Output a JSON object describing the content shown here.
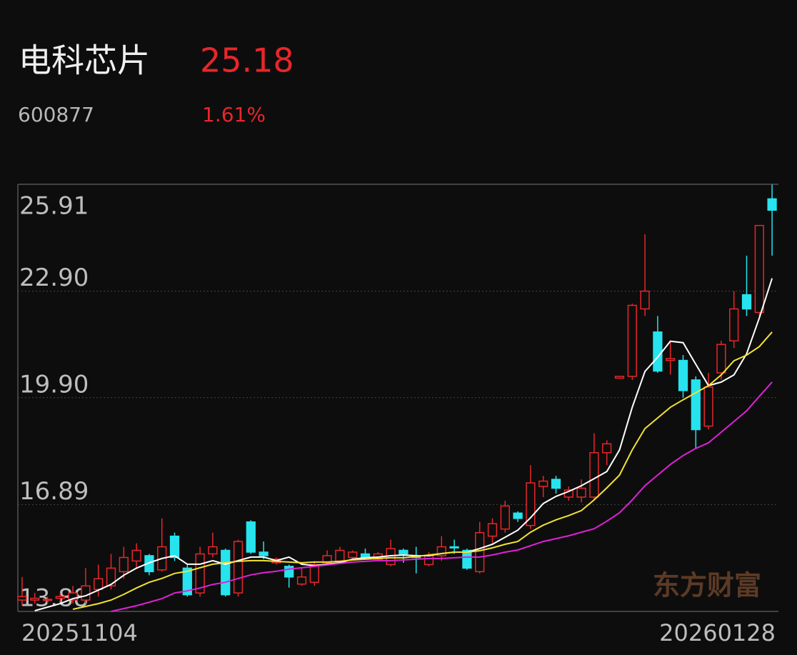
{
  "header": {
    "name": "电科芯片",
    "price": "25.18",
    "code": "600877",
    "change": "1.61%"
  },
  "watermark": "东方财富",
  "chart_data": {
    "type": "candlestick",
    "categories": [
      "20251104",
      null,
      null,
      null,
      null,
      null,
      null,
      null,
      null,
      null,
      null,
      null,
      null,
      null,
      null,
      null,
      null,
      null,
      null,
      null,
      null,
      null,
      null,
      null,
      null,
      null,
      null,
      null,
      null,
      null,
      null,
      null,
      null,
      null,
      null,
      null,
      null,
      null,
      null,
      null,
      null,
      null,
      null,
      null,
      null,
      null,
      null,
      null,
      null,
      null,
      null,
      null,
      null,
      null,
      null,
      null,
      null,
      null,
      null,
      "20260128"
    ],
    "open": [
      14.2,
      14.2,
      14.2,
      14.25,
      14.2,
      14.2,
      14.5,
      14.6,
      15.0,
      15.3,
      15.45,
      15.05,
      16.0,
      15.1,
      14.4,
      15.5,
      15.6,
      14.4,
      16.4,
      15.55,
      15.25,
      15.15,
      14.65,
      14.7,
      15.25,
      15.3,
      15.4,
      15.5,
      15.35,
      15.2,
      15.6,
      15.45,
      15.2,
      15.45,
      15.7,
      15.6,
      15.0,
      16.0,
      16.2,
      16.65,
      16.3,
      17.4,
      17.6,
      17.1,
      17.1,
      17.1,
      18.35,
      20.45,
      20.5,
      22.4,
      21.75,
      20.95,
      20.95,
      20.4,
      19.1,
      20.6,
      21.5,
      22.8,
      22.3,
      25.5
    ],
    "high": [
      14.85,
      14.4,
      14.3,
      14.4,
      14.6,
      15.1,
      15.2,
      15.5,
      15.7,
      15.8,
      15.5,
      16.5,
      16.1,
      15.2,
      15.7,
      16.1,
      15.65,
      15.9,
      16.45,
      15.85,
      15.4,
      15.2,
      15.1,
      15.3,
      15.6,
      15.7,
      15.6,
      15.65,
      15.55,
      15.9,
      15.65,
      15.7,
      15.55,
      16.0,
      15.9,
      15.65,
      16.4,
      16.5,
      17.0,
      16.7,
      18.0,
      17.7,
      17.7,
      17.4,
      17.6,
      18.9,
      18.7,
      20.5,
      22.55,
      24.5,
      22.2,
      21.5,
      21.1,
      20.5,
      20.6,
      21.5,
      22.9,
      23.9,
      24.75,
      25.9
    ],
    "low": [
      14.04,
      14.1,
      14.1,
      14.15,
      14.1,
      14.1,
      14.3,
      14.5,
      14.8,
      15.1,
      14.9,
      15.0,
      15.3,
      14.3,
      14.3,
      15.4,
      14.3,
      14.3,
      15.5,
      15.35,
      15.2,
      14.55,
      14.6,
      14.6,
      15.2,
      15.25,
      15.35,
      15.35,
      15.3,
      15.15,
      15.25,
      14.95,
      15.15,
      15.3,
      15.5,
      15.05,
      14.95,
      15.8,
      16.1,
      16.4,
      16.2,
      17.1,
      17.2,
      17.0,
      16.95,
      17.0,
      18.0,
      20.45,
      20.4,
      22.2,
      20.6,
      20.55,
      19.9,
      18.45,
      19.0,
      20.4,
      21.3,
      22.2,
      22.2,
      23.9
    ],
    "close": [
      14.3,
      14.25,
      14.22,
      14.3,
      14.4,
      14.6,
      14.8,
      15.1,
      15.4,
      15.6,
      15.0,
      15.7,
      15.4,
      14.35,
      15.5,
      15.7,
      14.35,
      15.85,
      15.55,
      15.45,
      15.35,
      14.85,
      14.85,
      15.2,
      15.45,
      15.6,
      15.55,
      15.4,
      15.5,
      15.65,
      15.5,
      15.4,
      15.45,
      15.7,
      15.68,
      15.1,
      16.1,
      16.35,
      16.85,
      16.5,
      17.5,
      17.55,
      17.35,
      17.3,
      17.35,
      18.35,
      18.6,
      20.5,
      22.5,
      22.9,
      20.65,
      21.0,
      20.1,
      19.0,
      20.2,
      21.4,
      22.4,
      22.4,
      24.75,
      25.18
    ],
    "up_color": "#e8262a",
    "down_color": "#27e3ee",
    "lines": [
      {
        "color": "#ffffff",
        "values": [
          null,
          13.9,
          14.0,
          14.1,
          14.24,
          14.32,
          14.48,
          14.64,
          14.9,
          15.1,
          15.25,
          15.37,
          15.45,
          15.21,
          15.21,
          15.31,
          15.21,
          15.31,
          15.41,
          15.41,
          15.31,
          15.41,
          15.21,
          15.17,
          15.21,
          15.25,
          15.35,
          15.39,
          15.41,
          15.45,
          15.47,
          15.45,
          15.45,
          15.51,
          15.55,
          15.55,
          15.65,
          15.77,
          15.97,
          16.17,
          16.52,
          16.92,
          17.12,
          17.26,
          17.42,
          17.62,
          17.82,
          18.43,
          19.63,
          20.64,
          21.04,
          21.49,
          21.45,
          20.84,
          20.24,
          20.34,
          20.54,
          21.14,
          22.15,
          23.26
        ]
      },
      {
        "color": "#f2e230",
        "values": [
          null,
          null,
          null,
          null,
          13.94,
          14.02,
          14.1,
          14.2,
          14.36,
          14.54,
          14.7,
          14.81,
          14.95,
          15.01,
          15.11,
          15.21,
          15.25,
          15.29,
          15.31,
          15.31,
          15.29,
          15.27,
          15.25,
          15.27,
          15.27,
          15.29,
          15.33,
          15.35,
          15.37,
          15.39,
          15.39,
          15.43,
          15.47,
          15.51,
          15.55,
          15.55,
          15.59,
          15.67,
          15.77,
          15.85,
          16.11,
          16.31,
          16.46,
          16.58,
          16.72,
          17.02,
          17.36,
          17.72,
          18.43,
          19.03,
          19.33,
          19.63,
          19.84,
          20.04,
          20.24,
          20.54,
          20.94,
          21.1,
          21.34,
          21.75
        ]
      },
      {
        "color": "#e020d8",
        "values": [
          null,
          null,
          null,
          null,
          null,
          null,
          null,
          13.88,
          13.96,
          14.04,
          14.14,
          14.24,
          14.4,
          14.46,
          14.54,
          14.64,
          14.7,
          14.81,
          14.91,
          14.97,
          15.01,
          15.07,
          15.11,
          15.15,
          15.19,
          15.23,
          15.27,
          15.29,
          15.31,
          15.31,
          15.33,
          15.35,
          15.37,
          15.37,
          15.39,
          15.41,
          15.41,
          15.47,
          15.55,
          15.61,
          15.73,
          15.85,
          15.93,
          16.01,
          16.11,
          16.21,
          16.42,
          16.66,
          17.02,
          17.42,
          17.72,
          18.02,
          18.27,
          18.47,
          18.63,
          18.93,
          19.23,
          19.53,
          19.94,
          20.34
        ]
      }
    ],
    "ylim": [
      13.88,
      25.91
    ],
    "yticks": [
      25.91,
      {
        "value": 22.9,
        "label": "22.90"
      },
      {
        "value": 19.9,
        "label": "19.90"
      },
      16.89,
      13.88
    ],
    "grid": true
  }
}
